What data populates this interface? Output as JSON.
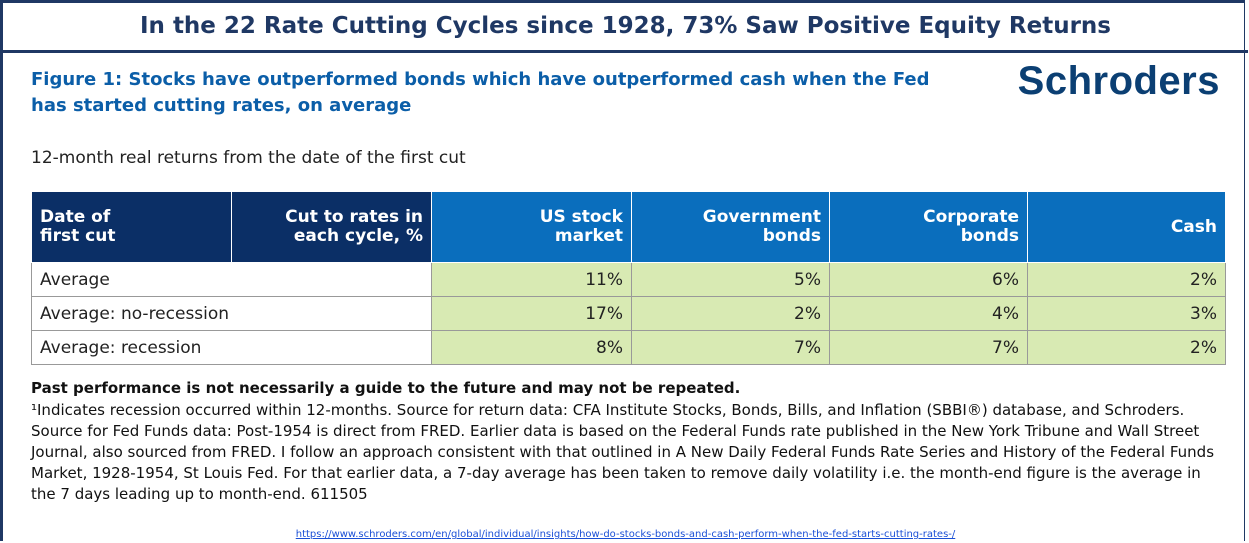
{
  "header": {
    "title": "In the 22 Rate Cutting Cycles since 1928, 73% Saw Positive Equity Returns",
    "figure": "Figure 1: Stocks have outperformed bonds which have outperformed cash when the Fed has started cutting rates, on average",
    "logo": "Schroders",
    "subtitle": "12-month real returns from the date of the first cut"
  },
  "table": {
    "columns": [
      "Date of first cut",
      "Cut to rates in each cycle, %",
      "US stock market",
      "Government bonds",
      "Corporate bonds",
      "Cash"
    ],
    "rows": [
      [
        "Average",
        "11%",
        "5%",
        "6%",
        "2%"
      ],
      [
        "Average: no-recession",
        "17%",
        "2%",
        "4%",
        "3%"
      ],
      [
        "Average: recession",
        "8%",
        "7%",
        "7%",
        "2%"
      ]
    ]
  },
  "footer": {
    "disclaimer": "Past performance is not necessarily a guide to the future and may not be repeated.",
    "note": "¹Indicates recession occurred within 12-months. Source for return data: CFA Institute Stocks, Bonds, Bills, and Inflation (SBBI®) database, and Schroders. Source for Fed Funds data: Post-1954 is direct from FRED. Earlier data is based on the Federal Funds rate published in the New York Tribune and Wall Street Journal, also sourced from FRED. I follow an approach consistent with that outlined in A New Daily Federal Funds Rate Series and History of the Federal Funds Market, 1928-1954, St Louis Fed. For that earlier data, a 7-day average has been taken to remove daily volatility i.e. the month-end figure is the average in the 7 days leading up to month-end. 611505",
    "url": "https://www.schroders.com/en/global/individual/insights/how-do-stocks-bonds-and-cash-perform-when-the-fed-starts-cutting-rates-/"
  }
}
